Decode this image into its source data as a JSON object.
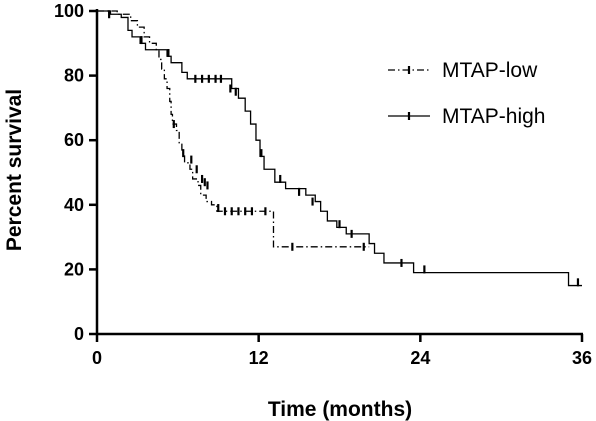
{
  "chart_data": {
    "type": "line",
    "title": "",
    "xlabel": "Time (months)",
    "ylabel": "Percent survival",
    "xlim": [
      0,
      36
    ],
    "ylim": [
      0,
      100
    ],
    "x_ticks": [
      0,
      12,
      24,
      36
    ],
    "y_ticks": [
      0,
      20,
      40,
      60,
      80,
      100
    ],
    "x_tick_labels": [
      "0",
      "12",
      "24",
      "36"
    ],
    "y_tick_labels": [
      "0",
      "20",
      "40",
      "60",
      "80",
      "100"
    ],
    "grid": false,
    "legend_position": "top-right",
    "series": [
      {
        "name": "MTAP-low",
        "style": "dash-dot",
        "color": "#000000",
        "steps": [
          [
            0,
            100
          ],
          [
            1.5,
            99
          ],
          [
            2.5,
            97
          ],
          [
            3.0,
            95
          ],
          [
            3.5,
            92
          ],
          [
            3.9,
            90
          ],
          [
            4.4,
            88
          ],
          [
            4.6,
            85
          ],
          [
            4.8,
            82
          ],
          [
            5.0,
            79
          ],
          [
            5.2,
            76
          ],
          [
            5.4,
            72
          ],
          [
            5.5,
            68
          ],
          [
            5.6,
            65
          ],
          [
            5.9,
            63
          ],
          [
            6.1,
            59
          ],
          [
            6.3,
            56
          ],
          [
            6.5,
            53
          ],
          [
            6.9,
            51
          ],
          [
            7.1,
            48
          ],
          [
            7.5,
            46
          ],
          [
            7.7,
            43
          ],
          [
            8.1,
            41
          ],
          [
            8.5,
            40
          ],
          [
            8.9,
            38
          ],
          [
            12.9,
            38
          ],
          [
            13.1,
            27
          ],
          [
            20.2,
            27
          ]
        ],
        "censored": [
          [
            0.9,
            99
          ],
          [
            5.7,
            65
          ],
          [
            6.4,
            56
          ],
          [
            7.0,
            54
          ],
          [
            7.4,
            51
          ],
          [
            7.8,
            48
          ],
          [
            8.0,
            47
          ],
          [
            8.2,
            46
          ],
          [
            9.0,
            39
          ],
          [
            9.5,
            38
          ],
          [
            10.0,
            38
          ],
          [
            10.5,
            38
          ],
          [
            11.0,
            38
          ],
          [
            11.5,
            38
          ],
          [
            12.5,
            38
          ],
          [
            14.5,
            27
          ],
          [
            19.8,
            27
          ]
        ]
      },
      {
        "name": "MTAP-high",
        "style": "solid",
        "color": "#000000",
        "steps": [
          [
            0,
            100
          ],
          [
            1.0,
            99
          ],
          [
            1.8,
            98
          ],
          [
            2.3,
            94
          ],
          [
            2.6,
            92
          ],
          [
            3.2,
            90
          ],
          [
            3.6,
            88
          ],
          [
            4.8,
            88
          ],
          [
            5.2,
            86
          ],
          [
            5.5,
            84
          ],
          [
            6.3,
            81
          ],
          [
            6.7,
            79
          ],
          [
            10.0,
            76
          ],
          [
            10.5,
            73
          ],
          [
            11.0,
            69
          ],
          [
            11.4,
            65
          ],
          [
            11.8,
            60
          ],
          [
            12.1,
            55
          ],
          [
            12.4,
            51
          ],
          [
            13.2,
            47
          ],
          [
            14.0,
            45
          ],
          [
            15.5,
            43
          ],
          [
            16.2,
            41
          ],
          [
            16.6,
            38
          ],
          [
            17.1,
            35
          ],
          [
            17.8,
            33
          ],
          [
            18.5,
            31
          ],
          [
            20.2,
            28
          ],
          [
            20.6,
            25
          ],
          [
            21.3,
            22
          ],
          [
            23.5,
            19
          ],
          [
            35.0,
            15
          ],
          [
            36.0,
            15
          ]
        ],
        "censored": [
          [
            3.3,
            91
          ],
          [
            5.3,
            87
          ],
          [
            7.3,
            79
          ],
          [
            7.8,
            79
          ],
          [
            8.3,
            79
          ],
          [
            8.8,
            79
          ],
          [
            9.2,
            79
          ],
          [
            9.9,
            76
          ],
          [
            10.3,
            75
          ],
          [
            12.2,
            56
          ],
          [
            13.6,
            48
          ],
          [
            15.0,
            44
          ],
          [
            16.0,
            41
          ],
          [
            18.0,
            34
          ],
          [
            18.9,
            31
          ],
          [
            22.6,
            22
          ],
          [
            24.3,
            20
          ],
          [
            35.7,
            16
          ]
        ]
      }
    ]
  }
}
